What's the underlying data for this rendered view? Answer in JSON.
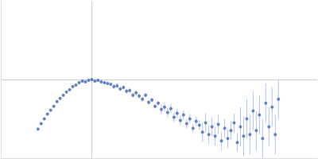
{
  "chart_data": {
    "type": "scatter",
    "x": [
      47,
      51,
      55,
      59,
      63,
      67,
      71,
      75,
      79,
      83,
      87,
      91,
      95,
      99,
      103,
      107,
      111,
      115,
      119,
      123,
      127,
      131,
      135,
      139,
      143,
      147,
      151,
      155,
      159,
      163,
      167,
      171,
      175,
      179,
      183,
      187,
      191,
      195,
      199,
      203,
      207,
      211,
      215,
      219,
      223,
      227,
      231,
      235,
      239,
      243,
      247,
      251,
      255,
      259,
      263,
      267,
      271,
      275,
      279,
      283,
      287,
      291,
      295,
      299,
      303,
      307,
      311,
      315,
      319,
      323,
      327,
      331,
      335,
      339,
      343,
      347,
      351
    ],
    "values": [
      37,
      44,
      50,
      56,
      61,
      66,
      72,
      76,
      80,
      84,
      87,
      91,
      93,
      96,
      98,
      97,
      99,
      100,
      98,
      99,
      97,
      96,
      95,
      94,
      91,
      92,
      88,
      90,
      85,
      86,
      80,
      83,
      79,
      75,
      80,
      71,
      74,
      66,
      70,
      62,
      65,
      58,
      63,
      52,
      57,
      48,
      55,
      44,
      50,
      38,
      47,
      42,
      33,
      45,
      30,
      40,
      28,
      43,
      22,
      38,
      25,
      35,
      45,
      20,
      40,
      28,
      50,
      30,
      60,
      35,
      55,
      25,
      70,
      40,
      65,
      30,
      75
    ],
    "errors": [
      1,
      1,
      1,
      1,
      1,
      1,
      1,
      1,
      1,
      1,
      1,
      1,
      1,
      1,
      1,
      1,
      1,
      1,
      1,
      1,
      1,
      1,
      1,
      1,
      3,
      3,
      3,
      3,
      3,
      3,
      3,
      3,
      3,
      3,
      3,
      3,
      3,
      3,
      3,
      6,
      6,
      6,
      6,
      6,
      6,
      6,
      6,
      6,
      6,
      6,
      6,
      6,
      12,
      12,
      12,
      12,
      12,
      12,
      12,
      12,
      12,
      12,
      12,
      12,
      25,
      25,
      25,
      25,
      25,
      25,
      25,
      25,
      25,
      25,
      25,
      25,
      25
    ],
    "color": "#3a67b8",
    "marker": "circle",
    "xlim": [
      0,
      400
    ],
    "ylim": [
      0,
      200
    ],
    "xticks": [
      115
    ],
    "yticks": [
      100
    ],
    "grid": true,
    "tick_labels": false
  }
}
